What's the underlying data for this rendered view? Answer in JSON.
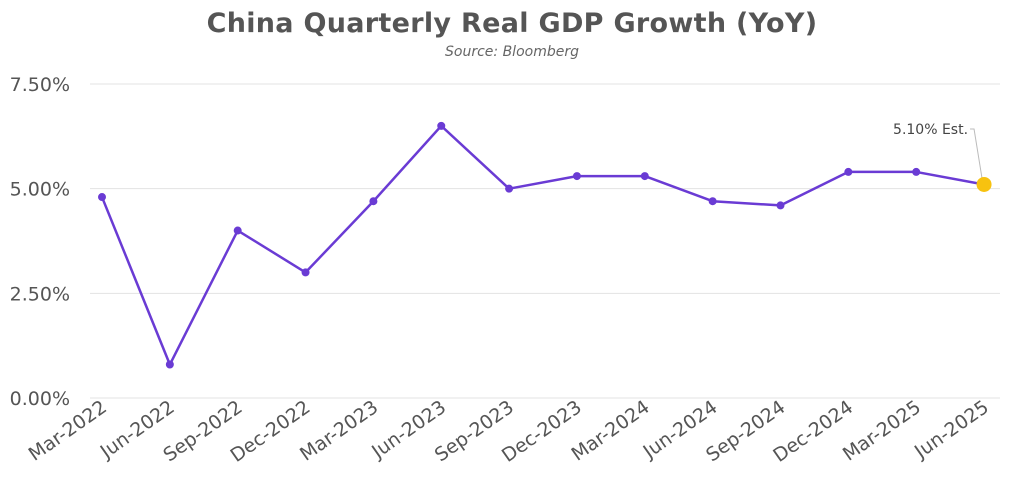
{
  "chart_data": {
    "type": "line",
    "title": "China Quarterly Real GDP Growth (YoY)",
    "subtitle": "Source: Bloomberg",
    "xlabel": "",
    "ylabel": "",
    "categories": [
      "Mar-2022",
      "Jun-2022",
      "Sep-2022",
      "Dec-2022",
      "Mar-2023",
      "Jun-2023",
      "Sep-2023",
      "Dec-2023",
      "Mar-2024",
      "Jun-2024",
      "Sep-2024",
      "Dec-2024",
      "Mar-2025",
      "Jun-2025"
    ],
    "series": [
      {
        "values": [
          4.8,
          0.8,
          4.0,
          3.0,
          4.7,
          6.5,
          5.0,
          5.3,
          5.3,
          4.7,
          4.6,
          5.4,
          5.4,
          5.1
        ]
      }
    ],
    "ylim": [
      0,
      7.5
    ],
    "yticks": [
      "0.00%",
      "2.50%",
      "5.00%",
      "7.50%"
    ],
    "ytick_values": [
      0,
      2.5,
      5,
      7.5
    ],
    "grid": true,
    "annotation": {
      "text": "5.10% Est.",
      "index": 13
    },
    "colors": {
      "line": "#6a3bd4",
      "highlight": "#f7c20f",
      "grid": "#e3e3e3",
      "text": "#555555"
    }
  }
}
